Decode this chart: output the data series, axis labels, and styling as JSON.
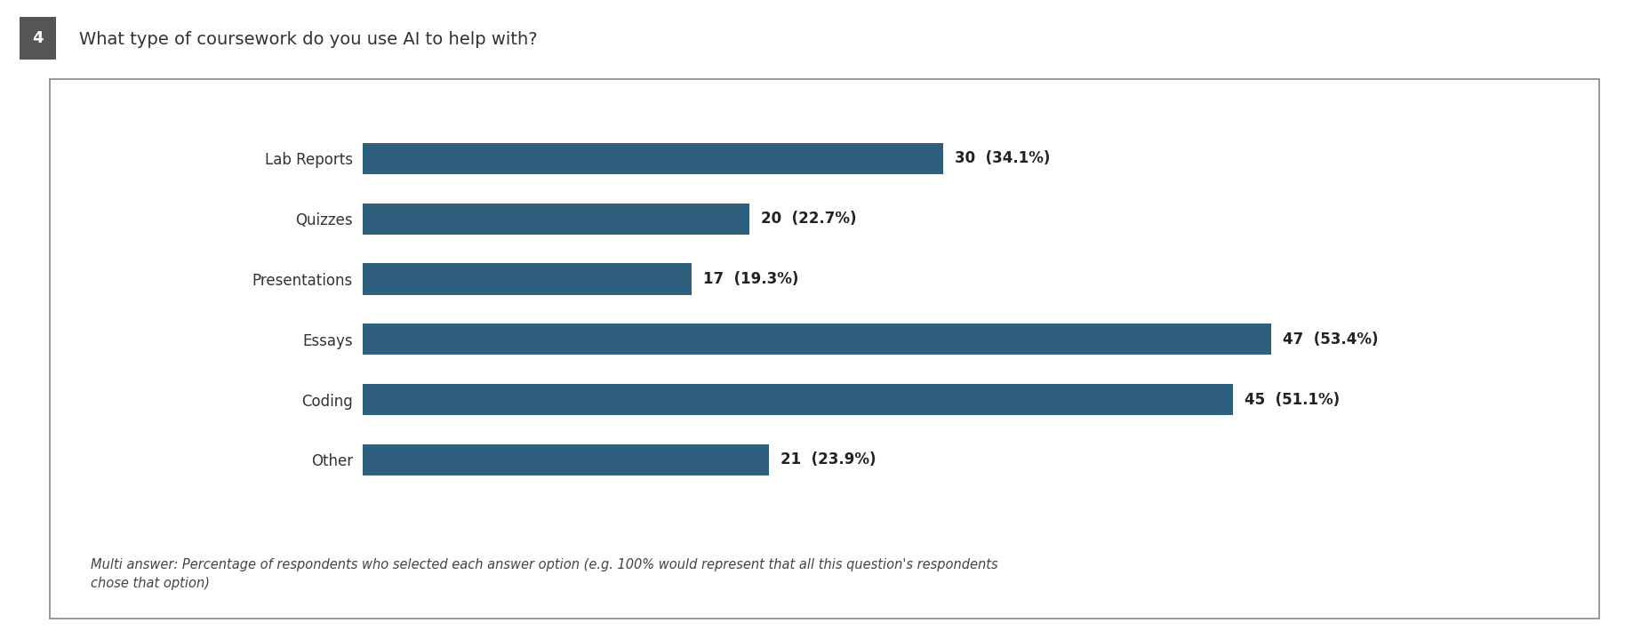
{
  "title": "What type of coursework do you use AI to help with?",
  "question_number": "4",
  "categories": [
    "Lab Reports",
    "Quizzes",
    "Presentations",
    "Essays",
    "Coding",
    "Other"
  ],
  "values": [
    30,
    20,
    17,
    47,
    45,
    21
  ],
  "percentages": [
    "34.1%",
    "22.7%",
    "19.3%",
    "53.4%",
    "51.1%",
    "23.9%"
  ],
  "bar_color": "#2e5f7c",
  "bar_height": 0.52,
  "xlim": [
    0,
    58
  ],
  "footer_text": "Multi answer: Percentage of respondents who selected each answer option (e.g. 100% would represent that all this question's respondents\nchose that option)",
  "background_color": "#ffffff",
  "outer_bg_color": "#ffffff",
  "title_fontsize": 14,
  "label_fontsize": 12,
  "value_fontsize": 12,
  "footer_fontsize": 10.5,
  "border_color": "#888888"
}
